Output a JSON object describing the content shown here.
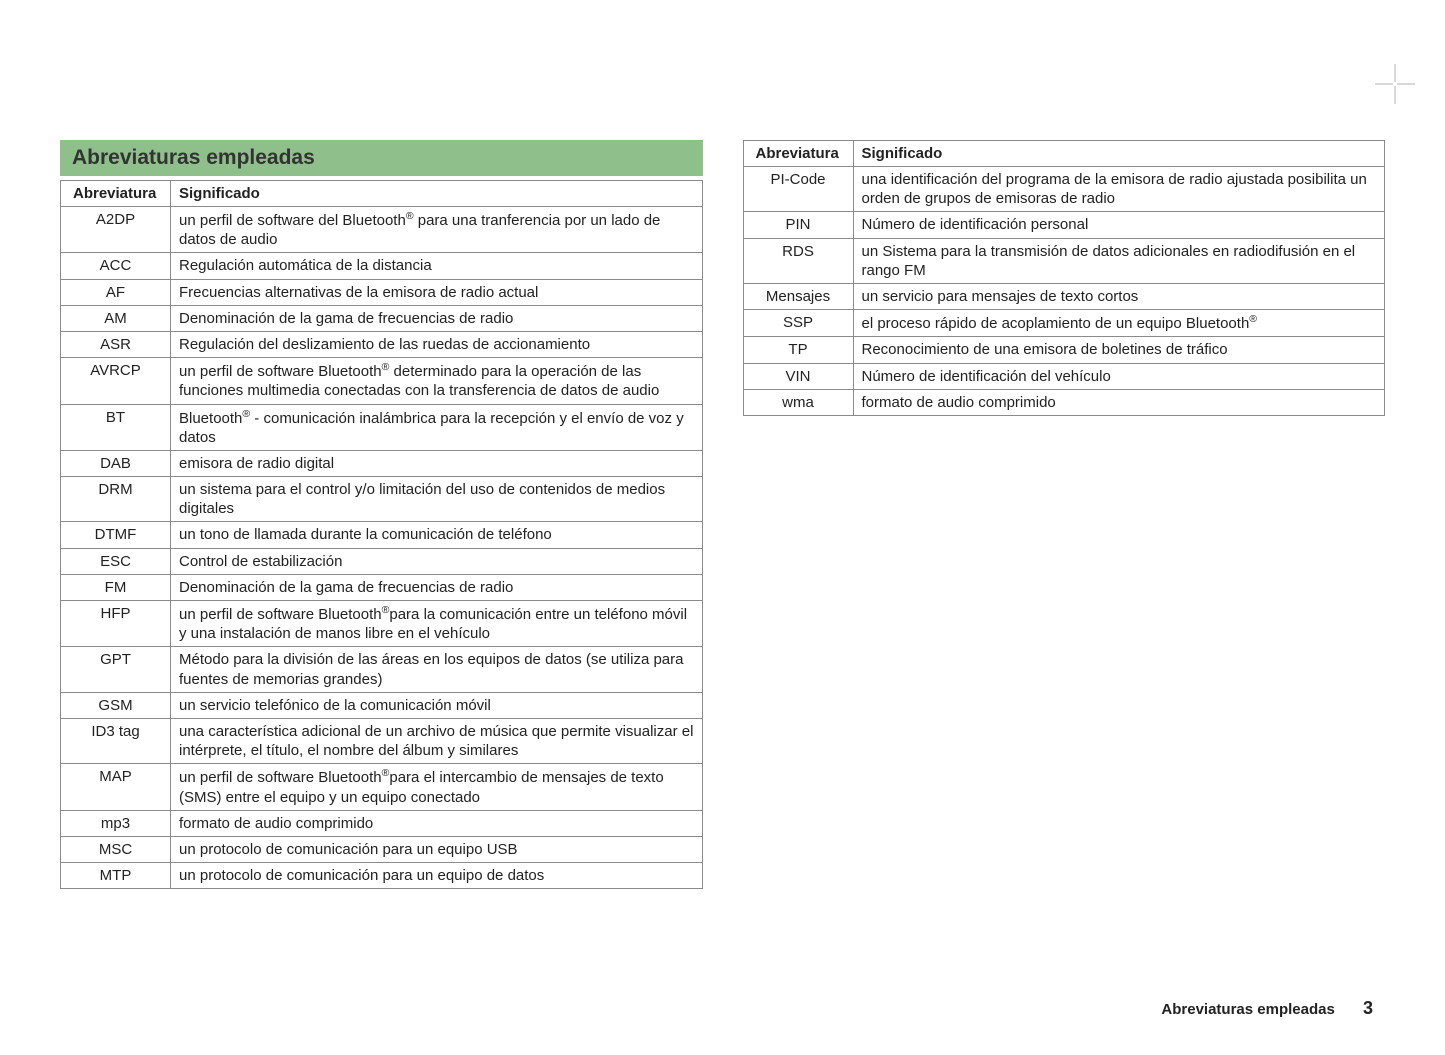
{
  "colors": {
    "title_bg": "#8fc08b",
    "border": "#8a8a8a",
    "text": "#222222",
    "page_bg": "#ffffff"
  },
  "section_title": "Abreviaturas empleadas",
  "header_abbr": "Abreviatura",
  "header_meaning": "Significado",
  "footer_text": "Abreviaturas empleadas",
  "footer_page": "3",
  "table1": [
    {
      "abbr": "A2DP",
      "meaning": "un perfil de software del Bluetooth® para una tranferencia por un lado de datos de audio"
    },
    {
      "abbr": "ACC",
      "meaning": "Regulación automática de la distancia"
    },
    {
      "abbr": "AF",
      "meaning": "Frecuencias alternativas de la emisora de radio actual"
    },
    {
      "abbr": "AM",
      "meaning": "Denominación de la gama de frecuencias de radio"
    },
    {
      "abbr": "ASR",
      "meaning": "Regulación del deslizamiento de las ruedas de accionamiento"
    },
    {
      "abbr": "AVRCP",
      "meaning": "un perfil de software Bluetooth® determinado para la operación de las funciones multimedia conectadas con la transferencia de datos de audio"
    },
    {
      "abbr": "BT",
      "meaning": "Bluetooth® - comunicación inalámbrica para la recepción y el envío de voz y datos"
    },
    {
      "abbr": "DAB",
      "meaning": "emisora de radio digital"
    },
    {
      "abbr": "DRM",
      "meaning": "un sistema para el control y/o limitación del uso de contenidos de medios digitales"
    },
    {
      "abbr": "DTMF",
      "meaning": "un tono de llamada durante la comunicación de teléfono"
    },
    {
      "abbr": "ESC",
      "meaning": "Control de estabilización"
    },
    {
      "abbr": "FM",
      "meaning": "Denominación de la gama de frecuencias de radio"
    },
    {
      "abbr": "HFP",
      "meaning": "un perfil de software Bluetooth®para la comunicación entre un teléfono móvil y una instalación de manos libre en el vehículo"
    },
    {
      "abbr": "GPT",
      "meaning": "Método para la división de las áreas en los equipos de datos (se utiliza para fuentes de memorias grandes)"
    },
    {
      "abbr": "GSM",
      "meaning": "un servicio telefónico de la comunicación móvil"
    },
    {
      "abbr": "ID3 tag",
      "meaning": "una característica adicional de un archivo de música que permite visualizar el intérprete, el título, el nombre del álbum y similares"
    },
    {
      "abbr": "MAP",
      "meaning": "un perfil de software Bluetooth®para el intercambio de mensajes de texto (SMS) entre el equipo y un equipo conectado"
    },
    {
      "abbr": "mp3",
      "meaning": "formato de audio comprimido"
    },
    {
      "abbr": "MSC",
      "meaning": "un protocolo de comunicación para un equipo USB"
    },
    {
      "abbr": "MTP",
      "meaning": "un protocolo de comunicación para un equipo de datos"
    }
  ],
  "table2": [
    {
      "abbr": "PI-Code",
      "meaning": "una identificación del programa de la emisora de radio ajustada posibilita un orden de grupos de emisoras de radio"
    },
    {
      "abbr": "PIN",
      "meaning": "Número de identificación personal"
    },
    {
      "abbr": "RDS",
      "meaning": "un Sistema para la transmisión de datos adicionales en radiodifusión en el rango FM"
    },
    {
      "abbr": "Mensajes",
      "meaning": "un servicio para mensajes de texto cortos"
    },
    {
      "abbr": "SSP",
      "meaning": "el proceso rápido de acoplamiento de un equipo Bluetooth®"
    },
    {
      "abbr": "TP",
      "meaning": "Reconocimiento de una emisora de boletines de tráfico"
    },
    {
      "abbr": "VIN",
      "meaning": "Número de identificación del vehículo"
    },
    {
      "abbr": "wma",
      "meaning": "formato de audio comprimido"
    }
  ]
}
